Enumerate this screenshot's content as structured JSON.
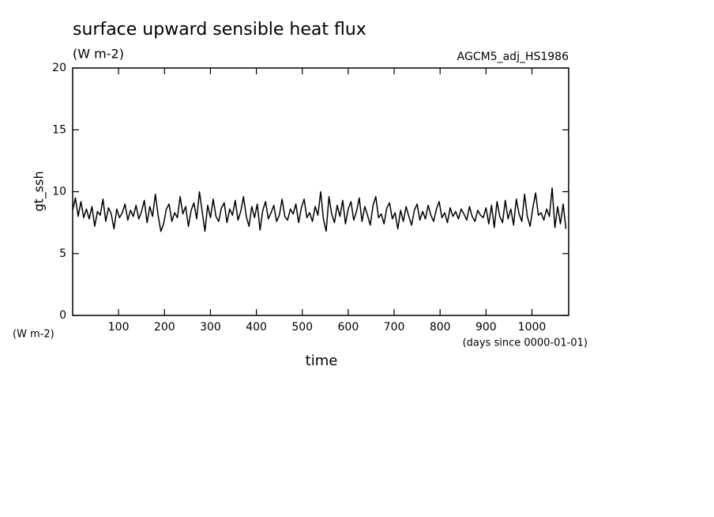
{
  "chart_data": {
    "type": "line",
    "title": "surface upward sensible heat flux",
    "subtitle": "(W m-2)",
    "annotation": "AGCM5_adj_HS1986",
    "y_label": "gt_ssh",
    "y_unit": "(W m-2)",
    "x_label": "time",
    "x_unit": "(days since 0000-01-01)",
    "color": "#000000",
    "xlim": [
      0,
      1080
    ],
    "ylim": [
      0,
      20
    ],
    "xticks": [
      100,
      200,
      300,
      400,
      500,
      600,
      700,
      800,
      900,
      1000
    ],
    "yticks": [
      0,
      5,
      10,
      15,
      20
    ],
    "x": [
      0,
      6,
      12,
      18,
      24,
      30,
      36,
      42,
      48,
      54,
      60,
      66,
      72,
      78,
      84,
      90,
      96,
      102,
      108,
      114,
      120,
      126,
      132,
      138,
      144,
      150,
      156,
      162,
      168,
      174,
      180,
      186,
      192,
      198,
      204,
      210,
      216,
      222,
      228,
      234,
      240,
      246,
      252,
      258,
      264,
      270,
      276,
      282,
      288,
      294,
      300,
      306,
      312,
      318,
      324,
      330,
      336,
      342,
      348,
      354,
      360,
      366,
      372,
      378,
      384,
      390,
      396,
      402,
      408,
      414,
      420,
      426,
      432,
      438,
      444,
      450,
      456,
      462,
      468,
      474,
      480,
      486,
      492,
      498,
      504,
      510,
      516,
      522,
      528,
      534,
      540,
      546,
      552,
      558,
      564,
      570,
      576,
      582,
      588,
      594,
      600,
      606,
      612,
      618,
      624,
      630,
      636,
      642,
      648,
      654,
      660,
      666,
      672,
      678,
      684,
      690,
      696,
      702,
      708,
      714,
      720,
      726,
      732,
      738,
      744,
      750,
      756,
      762,
      768,
      774,
      780,
      786,
      792,
      798,
      804,
      810,
      816,
      822,
      828,
      834,
      840,
      846,
      852,
      858,
      864,
      870,
      876,
      882,
      888,
      894,
      900,
      906,
      912,
      918,
      924,
      930,
      936,
      942,
      948,
      954,
      960,
      966,
      972,
      978,
      984,
      990,
      996,
      1002,
      1008,
      1014,
      1020,
      1026,
      1032,
      1038,
      1044,
      1050,
      1056,
      1062,
      1068,
      1074
    ],
    "values": [
      8.5,
      9.5,
      8.0,
      9.2,
      7.9,
      8.6,
      7.8,
      8.8,
      7.2,
      8.4,
      8.1,
      9.4,
      7.6,
      8.7,
      8.2,
      7.0,
      8.6,
      7.9,
      8.3,
      9.0,
      7.7,
      8.5,
      8.0,
      8.9,
      7.8,
      8.4,
      9.3,
      7.5,
      8.8,
      8.0,
      9.8,
      8.1,
      6.8,
      7.4,
      8.6,
      9.0,
      7.6,
      8.3,
      7.9,
      9.6,
      8.2,
      8.8,
      7.2,
      8.5,
      9.1,
      7.8,
      10.0,
      8.4,
      6.8,
      8.9,
      7.9,
      9.4,
      8.0,
      7.6,
      8.7,
      9.1,
      7.5,
      8.6,
      8.1,
      9.3,
      7.7,
      8.4,
      9.6,
      8.0,
      7.2,
      8.8,
      7.9,
      9.0,
      6.9,
      8.5,
      9.2,
      7.8,
      8.3,
      8.9,
      7.6,
      8.1,
      9.4,
      8.0,
      7.7,
      8.6,
      8.2,
      9.0,
      7.5,
      8.7,
      9.4,
      7.9,
      8.3,
      7.6,
      8.8,
      8.1,
      10.0,
      7.8,
      6.8,
      9.6,
      8.2,
      7.5,
      8.9,
      8.0,
      9.3,
      7.4,
      8.6,
      9.2,
      7.7,
      8.4,
      9.5,
      7.6,
      8.8,
      8.1,
      7.3,
      8.9,
      9.6,
      7.9,
      8.2,
      7.4,
      8.7,
      9.1,
      7.8,
      8.3,
      7.0,
      8.5,
      7.6,
      8.8,
      8.0,
      7.3,
      8.5,
      9.0,
      7.7,
      8.4,
      7.8,
      8.9,
      8.1,
      7.6,
      8.6,
      9.2,
      7.9,
      8.3,
      7.5,
      8.7,
      8.0,
      8.4,
      7.8,
      8.6,
      8.2,
      7.7,
      8.8,
      8.0,
      7.6,
      8.5,
      8.1,
      7.9,
      8.7,
      7.4,
      8.9,
      7.1,
      9.2,
      8.0,
      7.5,
      9.3,
      7.8,
      8.6,
      7.3,
      9.4,
      8.2,
      7.6,
      9.8,
      8.0,
      7.2,
      8.7,
      9.9,
      8.1,
      8.3,
      7.7,
      8.6,
      8.0,
      10.3,
      7.1,
      8.8,
      7.4,
      9.0,
      7.0
    ]
  }
}
